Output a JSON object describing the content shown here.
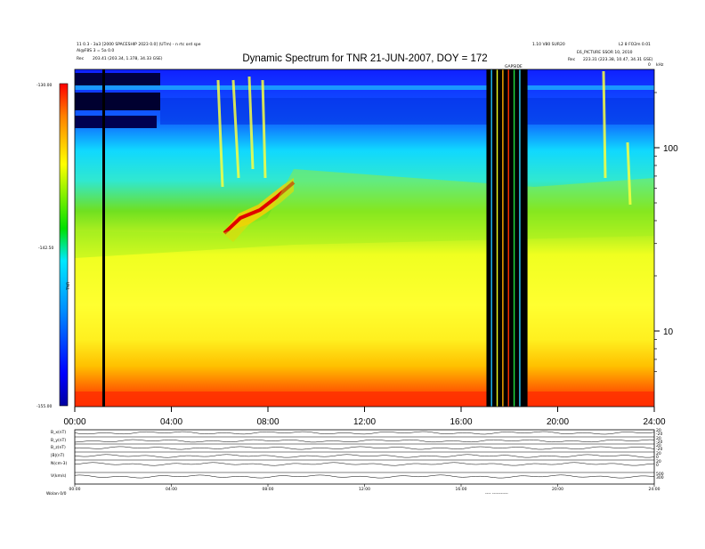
{
  "chart_data": {
    "type": "heatmap",
    "title": "Dynamic Spectrum for TNR 21-JUN-2007, DOY = 172",
    "header_left": [
      "11 0.3 - 3a3 [2000 SPACESHIP 2023 0.0] (UTm) - n rtc ord spe",
      "Al@F8S 3 = 5a 0.0",
      "Rec",
      "203.41 (203.34, 1.378, 34.33 GSE)"
    ],
    "header_right": [
      "1.10 V80 SUR20",
      "L2 8 FO2m 0.01",
      "E6_PICTURE SSOR 10, 2010",
      "Rec",
      "223.31 (223.38, 10.47, 34.31 GSE)"
    ],
    "colorbar": {
      "ticks": [
        "-130.00",
        "-142.50",
        "-155.00"
      ],
      "stops": [
        "#0000a0",
        "#0000ff",
        "#0090ff",
        "#00e8ff",
        "#00e000",
        "#ffff00",
        "#ff8000",
        "#ff0000"
      ],
      "label": "TNR"
    },
    "xaxis": {
      "ticks": [
        "00:00",
        "04:00",
        "08:00",
        "12:00",
        "16:00",
        "20:00",
        "24:00"
      ],
      "range": [
        0,
        24
      ]
    },
    "yaxis_right": {
      "ticks": [
        "100",
        "10"
      ],
      "top_label": "kHz",
      "scale": "log"
    },
    "gap_label": "GAPSIDE",
    "data_gaps_hours": [
      [
        17.05,
        18.75
      ]
    ],
    "bright_feature": "rising emission band from ~06:00 to ~09:00",
    "panels": {
      "labels": [
        "B_x(nT)",
        "B_y(nT)",
        "B_z(nT)",
        "|B|(nT)",
        "N(cm-3)",
        "V(km/s)"
      ],
      "right_ticks": [
        [
          "20",
          "-20"
        ],
        [
          "20",
          "-20"
        ],
        [
          "20",
          "-20"
        ],
        [
          "20",
          "0"
        ],
        [
          "20",
          "0"
        ],
        [
          "500",
          "300"
        ]
      ],
      "x_ticks": [
        "00:00",
        "04:00",
        "08:00",
        "12:00",
        "16:00",
        "20:00",
        "24:00"
      ]
    },
    "footer_left": "Wolan  0/0",
    "footer_mid": "---- -----------"
  }
}
